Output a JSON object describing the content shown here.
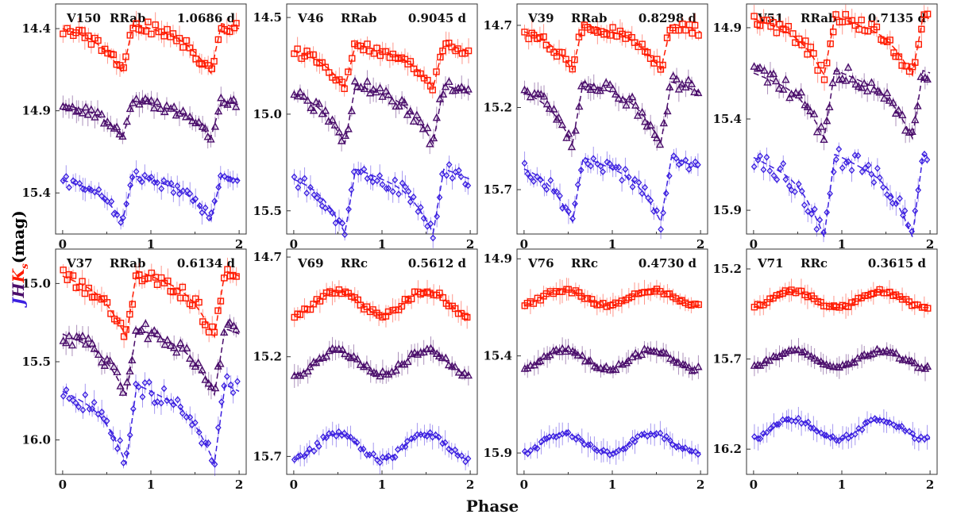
{
  "figure": {
    "xlabel": "Phase",
    "ylabel_parts": {
      "J": "J",
      "H": "H",
      "K": "K",
      "K_sub": "s",
      "unit": "(mag)"
    },
    "colors": {
      "J": "#3b1fe0",
      "H": "#4a0d6b",
      "Ks": "#ff1a00",
      "axis": "#333333"
    }
  },
  "chart_data": [
    {
      "type": "scatter",
      "title": {
        "star": "V150",
        "class": "RRab",
        "period": "1.0686 d"
      },
      "ylim": [
        15.65,
        14.25
      ],
      "yticks": [
        "14.4",
        "14.9",
        "15.4"
      ],
      "xticks": [
        "0",
        "1",
        "2"
      ],
      "xlim": [
        -0.08,
        2.08
      ],
      "series": [
        {
          "name": "Ks",
          "mean": 14.52,
          "amp": 0.3,
          "shape": "rrab",
          "phase_min": 0.68
        },
        {
          "name": "H",
          "mean": 14.95,
          "amp": 0.22,
          "shape": "rrab",
          "phase_min": 0.68
        },
        {
          "name": "J",
          "mean": 15.43,
          "amp": 0.27,
          "shape": "rrab",
          "phase_min": 0.68
        }
      ]
    },
    {
      "type": "scatter",
      "title": {
        "star": "V46",
        "class": "RRab",
        "period": "0.9045 d"
      },
      "ylim": [
        15.62,
        14.43
      ],
      "yticks": [
        "14.5",
        "15.0",
        "15.5"
      ],
      "xticks": [
        "0",
        "1",
        "2"
      ],
      "xlim": [
        -0.08,
        2.08
      ],
      "series": [
        {
          "name": "Ks",
          "mean": 14.75,
          "amp": 0.22,
          "shape": "rrab",
          "phase_min": 0.58
        },
        {
          "name": "H",
          "mean": 15.0,
          "amp": 0.3,
          "shape": "rrab",
          "phase_min": 0.58
        },
        {
          "name": "J",
          "mean": 15.45,
          "amp": 0.33,
          "shape": "rrab",
          "phase_min": 0.58
        }
      ]
    },
    {
      "type": "scatter",
      "title": {
        "star": "V39",
        "class": "RRab",
        "period": "0.8298 d"
      },
      "ylim": [
        15.97,
        14.57
      ],
      "yticks": [
        "14.7",
        "15.2",
        "15.7"
      ],
      "xticks": [
        "0",
        "1",
        "2"
      ],
      "xlim": [
        -0.08,
        2.08
      ],
      "series": [
        {
          "name": "Ks",
          "mean": 14.83,
          "amp": 0.28,
          "shape": "rrab",
          "phase_min": 0.55
        },
        {
          "name": "H",
          "mean": 15.23,
          "amp": 0.37,
          "shape": "rrab",
          "phase_min": 0.55
        },
        {
          "name": "J",
          "mean": 15.7,
          "amp": 0.39,
          "shape": "rrab",
          "phase_min": 0.55
        }
      ]
    },
    {
      "type": "scatter",
      "title": {
        "star": "V51",
        "class": "RRab",
        "period": "0.7135 d"
      },
      "ylim": [
        16.03,
        14.77
      ],
      "yticks": [
        "14.9",
        "15.4",
        "15.9"
      ],
      "xticks": [
        "0",
        "1",
        "2"
      ],
      "xlim": [
        -0.08,
        2.08
      ],
      "series": [
        {
          "name": "Ks",
          "mean": 15.0,
          "amp": 0.32,
          "shape": "rrab",
          "phase_min": 0.8
        },
        {
          "name": "H",
          "mean": 15.32,
          "amp": 0.37,
          "shape": "rrab",
          "phase_min": 0.8
        },
        {
          "name": "J",
          "mean": 15.82,
          "amp": 0.45,
          "shape": "rrab",
          "phase_min": 0.8
        }
      ]
    },
    {
      "type": "scatter",
      "title": {
        "star": "V37",
        "class": "RRab",
        "period": "0.6134 d"
      },
      "ylim": [
        16.22,
        14.78
      ],
      "yticks": [
        "15.0",
        "15.5",
        "16.0"
      ],
      "xticks": [
        "0",
        "1",
        "2"
      ],
      "xlim": [
        -0.08,
        2.08
      ],
      "series": [
        {
          "name": "Ks",
          "mean": 15.13,
          "amp": 0.42,
          "shape": "rrab",
          "phase_min": 0.72
        },
        {
          "name": "H",
          "mean": 15.5,
          "amp": 0.42,
          "shape": "rrab",
          "phase_min": 0.72
        },
        {
          "name": "J",
          "mean": 15.9,
          "amp": 0.5,
          "shape": "rrab",
          "phase_min": 0.72
        }
      ]
    },
    {
      "type": "scatter",
      "title": {
        "star": "V69",
        "class": "RRc",
        "period": "0.5612 d"
      },
      "ylim": [
        15.79,
        14.66
      ],
      "yticks": [
        "14.7",
        "15.2",
        "15.7"
      ],
      "xticks": [
        "0",
        "1",
        "2"
      ],
      "xlim": [
        -0.08,
        2.08
      ],
      "series": [
        {
          "name": "Ks",
          "mean": 14.93,
          "amp": 0.12,
          "shape": "rrc",
          "phase_min": 0.5
        },
        {
          "name": "H",
          "mean": 15.23,
          "amp": 0.12,
          "shape": "rrc",
          "phase_min": 0.5
        },
        {
          "name": "J",
          "mean": 15.65,
          "amp": 0.13,
          "shape": "rrc",
          "phase_min": 0.5
        }
      ]
    },
    {
      "type": "scatter",
      "title": {
        "star": "V76",
        "class": "RRc",
        "period": "0.4730 d"
      },
      "ylim": [
        16.01,
        14.85
      ],
      "yticks": [
        "14.9",
        "15.4",
        "15.9"
      ],
      "xticks": [
        "0",
        "1",
        "2"
      ],
      "xlim": [
        -0.08,
        2.08
      ],
      "series": [
        {
          "name": "Ks",
          "mean": 15.1,
          "amp": 0.08,
          "shape": "rrc",
          "phase_min": 0.45
        },
        {
          "name": "H",
          "mean": 15.42,
          "amp": 0.1,
          "shape": "rrc",
          "phase_min": 0.45
        },
        {
          "name": "J",
          "mean": 15.85,
          "amp": 0.1,
          "shape": "rrc",
          "phase_min": 0.45
        }
      ]
    },
    {
      "type": "scatter",
      "title": {
        "star": "V71",
        "class": "RRc",
        "period": "0.3615 d"
      },
      "ylim": [
        16.34,
        15.09
      ],
      "yticks": [
        "15.2",
        "15.7",
        "16.2"
      ],
      "xticks": [
        "0",
        "1",
        "2"
      ],
      "xlim": [
        -0.08,
        2.08
      ],
      "series": [
        {
          "name": "Ks",
          "mean": 15.37,
          "amp": 0.09,
          "shape": "rrc",
          "phase_min": 0.45
        },
        {
          "name": "H",
          "mean": 15.7,
          "amp": 0.09,
          "shape": "rrc",
          "phase_min": 0.45
        },
        {
          "name": "J",
          "mean": 16.09,
          "amp": 0.11,
          "shape": "rrc",
          "phase_min": 0.45
        }
      ]
    }
  ]
}
